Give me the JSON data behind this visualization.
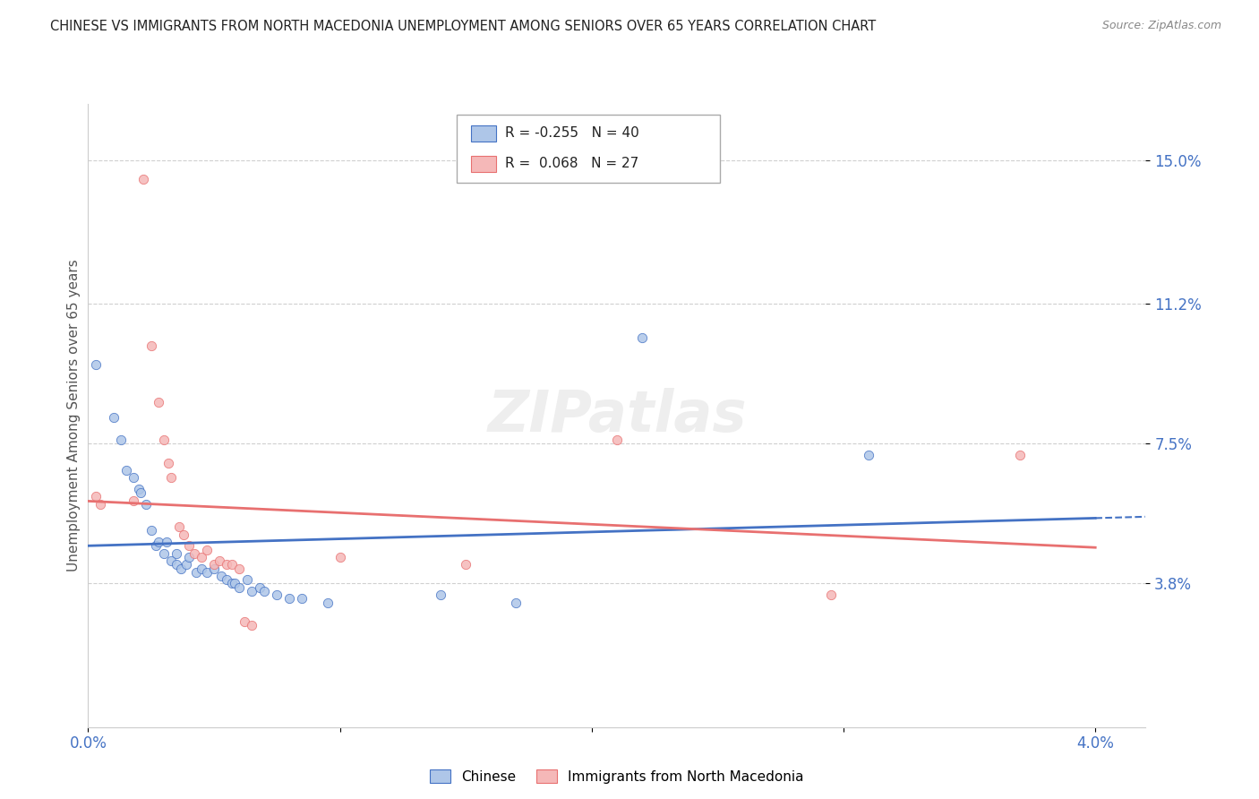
{
  "title": "CHINESE VS IMMIGRANTS FROM NORTH MACEDONIA UNEMPLOYMENT AMONG SENIORS OVER 65 YEARS CORRELATION CHART",
  "source": "Source: ZipAtlas.com",
  "ylabel": "Unemployment Among Seniors over 65 years",
  "y_tick_labels": [
    "15.0%",
    "11.2%",
    "7.5%",
    "3.8%"
  ],
  "y_tick_values": [
    0.15,
    0.112,
    0.075,
    0.038
  ],
  "x_tick_vals": [
    0.0,
    0.01,
    0.02,
    0.03,
    0.04
  ],
  "x_tick_labels": [
    "0.0%",
    "",
    "",
    "",
    "4.0%"
  ],
  "xlim": [
    0.0,
    0.042
  ],
  "ylim": [
    0.0,
    0.165
  ],
  "watermark": "ZIPatlas",
  "legend_r1_text": "R = -0.255",
  "legend_n1_text": "N = 40",
  "legend_r2_text": "R =  0.068",
  "legend_n2_text": "N = 27",
  "chinese_color": "#aec6e8",
  "macedonia_color": "#f5b8b8",
  "chinese_line_color": "#4472c4",
  "macedonia_line_color": "#e87070",
  "chinese_scatter": [
    [
      0.0003,
      0.096
    ],
    [
      0.001,
      0.082
    ],
    [
      0.0013,
      0.076
    ],
    [
      0.0015,
      0.068
    ],
    [
      0.0018,
      0.066
    ],
    [
      0.002,
      0.063
    ],
    [
      0.0021,
      0.062
    ],
    [
      0.0023,
      0.059
    ],
    [
      0.0025,
      0.052
    ],
    [
      0.0027,
      0.048
    ],
    [
      0.0028,
      0.049
    ],
    [
      0.003,
      0.046
    ],
    [
      0.0031,
      0.049
    ],
    [
      0.0033,
      0.044
    ],
    [
      0.0035,
      0.043
    ],
    [
      0.0035,
      0.046
    ],
    [
      0.0037,
      0.042
    ],
    [
      0.0039,
      0.043
    ],
    [
      0.004,
      0.045
    ],
    [
      0.0043,
      0.041
    ],
    [
      0.0045,
      0.042
    ],
    [
      0.0047,
      0.041
    ],
    [
      0.005,
      0.042
    ],
    [
      0.0053,
      0.04
    ],
    [
      0.0055,
      0.039
    ],
    [
      0.0057,
      0.038
    ],
    [
      0.0058,
      0.038
    ],
    [
      0.006,
      0.037
    ],
    [
      0.0063,
      0.039
    ],
    [
      0.0065,
      0.036
    ],
    [
      0.0068,
      0.037
    ],
    [
      0.007,
      0.036
    ],
    [
      0.0075,
      0.035
    ],
    [
      0.008,
      0.034
    ],
    [
      0.0085,
      0.034
    ],
    [
      0.0095,
      0.033
    ],
    [
      0.014,
      0.035
    ],
    [
      0.017,
      0.033
    ],
    [
      0.022,
      0.103
    ],
    [
      0.031,
      0.072
    ]
  ],
  "macedonia_scatter": [
    [
      0.0003,
      0.061
    ],
    [
      0.0005,
      0.059
    ],
    [
      0.0018,
      0.06
    ],
    [
      0.0022,
      0.145
    ],
    [
      0.0025,
      0.101
    ],
    [
      0.0028,
      0.086
    ],
    [
      0.003,
      0.076
    ],
    [
      0.0032,
      0.07
    ],
    [
      0.0033,
      0.066
    ],
    [
      0.0036,
      0.053
    ],
    [
      0.0038,
      0.051
    ],
    [
      0.004,
      0.048
    ],
    [
      0.0042,
      0.046
    ],
    [
      0.0045,
      0.045
    ],
    [
      0.0047,
      0.047
    ],
    [
      0.005,
      0.043
    ],
    [
      0.0052,
      0.044
    ],
    [
      0.0055,
      0.043
    ],
    [
      0.0057,
      0.043
    ],
    [
      0.006,
      0.042
    ],
    [
      0.0062,
      0.028
    ],
    [
      0.0065,
      0.027
    ],
    [
      0.01,
      0.045
    ],
    [
      0.015,
      0.043
    ],
    [
      0.021,
      0.076
    ],
    [
      0.0295,
      0.035
    ],
    [
      0.037,
      0.072
    ]
  ],
  "background_color": "#ffffff",
  "grid_color": "#d0d0d0"
}
